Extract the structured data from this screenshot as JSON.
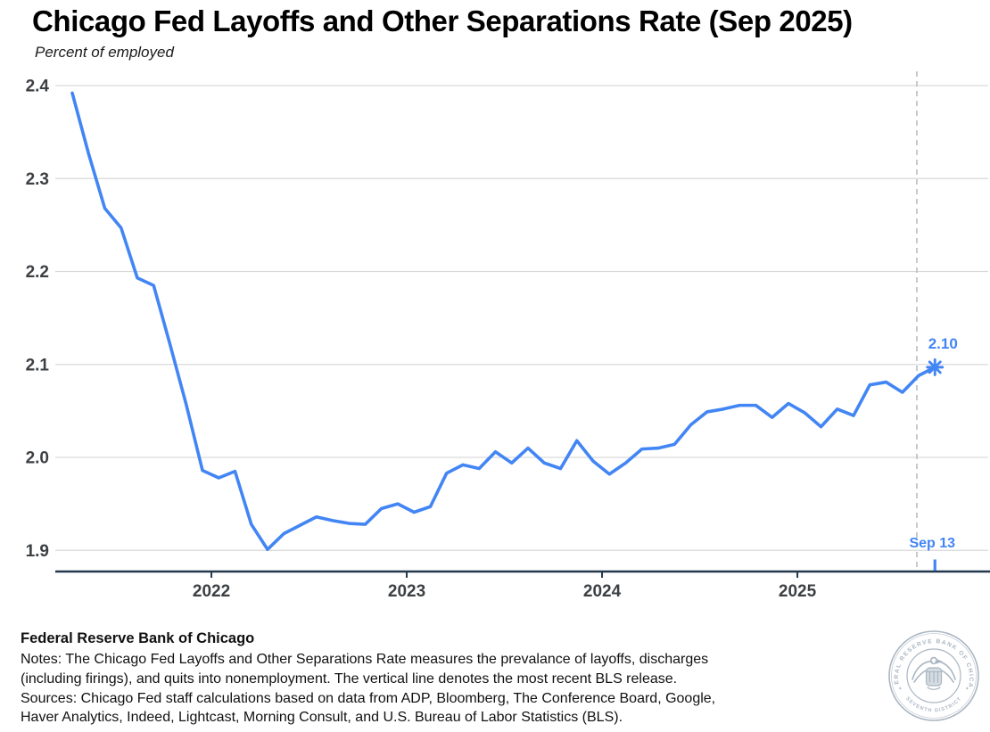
{
  "header": {
    "title": "Chicago Fed Layoffs and Other Separations Rate (Sep 2025)",
    "subtitle": "Percent of employed"
  },
  "chart_data": {
    "type": "line",
    "title": "Chicago Fed Layoffs and Other Separations Rate (Sep 2025)",
    "ylabel": "Percent of employed",
    "xlabel": "",
    "grid": true,
    "legend_position": "none",
    "ylim": [
      1.875,
      2.42
    ],
    "y_ticks": [
      "2.4",
      "2.3",
      "2.2",
      "2.1",
      "2.0",
      "1.9"
    ],
    "x_ticks": [
      "2022",
      "2023",
      "2024",
      "2025"
    ],
    "bls_release_date": "2025-08",
    "last_value_label": "2.10",
    "last_date_label": "Sep 13",
    "points": [
      {
        "date": "2021-04",
        "value": 2.392
      },
      {
        "date": "2021-05",
        "value": 2.327
      },
      {
        "date": "2021-06",
        "value": 2.268
      },
      {
        "date": "2021-07",
        "value": 2.247
      },
      {
        "date": "2021-08",
        "value": 2.193
      },
      {
        "date": "2021-09",
        "value": 2.185
      },
      {
        "date": "2021-10",
        "value": 2.122
      },
      {
        "date": "2021-11",
        "value": 2.057
      },
      {
        "date": "2021-12",
        "value": 1.986
      },
      {
        "date": "2022-01",
        "value": 1.978
      },
      {
        "date": "2022-02",
        "value": 1.985
      },
      {
        "date": "2022-03",
        "value": 1.928
      },
      {
        "date": "2022-04",
        "value": 1.901
      },
      {
        "date": "2022-05",
        "value": 1.918
      },
      {
        "date": "2022-06",
        "value": 1.927
      },
      {
        "date": "2022-07",
        "value": 1.936
      },
      {
        "date": "2022-08",
        "value": 1.932
      },
      {
        "date": "2022-09",
        "value": 1.929
      },
      {
        "date": "2022-10",
        "value": 1.928
      },
      {
        "date": "2022-11",
        "value": 1.945
      },
      {
        "date": "2022-12",
        "value": 1.95
      },
      {
        "date": "2023-01",
        "value": 1.941
      },
      {
        "date": "2023-02",
        "value": 1.947
      },
      {
        "date": "2023-03",
        "value": 1.983
      },
      {
        "date": "2023-04",
        "value": 1.992
      },
      {
        "date": "2023-05",
        "value": 1.988
      },
      {
        "date": "2023-06",
        "value": 2.006
      },
      {
        "date": "2023-07",
        "value": 1.994
      },
      {
        "date": "2023-08",
        "value": 2.01
      },
      {
        "date": "2023-09",
        "value": 1.994
      },
      {
        "date": "2023-10",
        "value": 1.988
      },
      {
        "date": "2023-11",
        "value": 2.018
      },
      {
        "date": "2023-12",
        "value": 1.996
      },
      {
        "date": "2024-01",
        "value": 1.982
      },
      {
        "date": "2024-02",
        "value": 1.994
      },
      {
        "date": "2024-03",
        "value": 2.009
      },
      {
        "date": "2024-04",
        "value": 2.01
      },
      {
        "date": "2024-05",
        "value": 2.014
      },
      {
        "date": "2024-06",
        "value": 2.035
      },
      {
        "date": "2024-07",
        "value": 2.049
      },
      {
        "date": "2024-08",
        "value": 2.052
      },
      {
        "date": "2024-09",
        "value": 2.056
      },
      {
        "date": "2024-10",
        "value": 2.056
      },
      {
        "date": "2024-11",
        "value": 2.043
      },
      {
        "date": "2024-12",
        "value": 2.058
      },
      {
        "date": "2025-01",
        "value": 2.048
      },
      {
        "date": "2025-02",
        "value": 2.033
      },
      {
        "date": "2025-03",
        "value": 2.052
      },
      {
        "date": "2025-04",
        "value": 2.045
      },
      {
        "date": "2025-05",
        "value": 2.078
      },
      {
        "date": "2025-06",
        "value": 2.081
      },
      {
        "date": "2025-07",
        "value": 2.07
      },
      {
        "date": "2025-08",
        "value": 2.088
      },
      {
        "date": "2025-09-13",
        "value": 2.097
      }
    ]
  },
  "colors": {
    "line": "#4285f4",
    "grid": "#d9d9d9",
    "axis": "#22384d",
    "tick_label": "#3d4043",
    "dashed": "#b7bdc3",
    "annotation": "#4285f4",
    "seal": "#aab6c2"
  },
  "footer": {
    "org": "Federal Reserve Bank of Chicago",
    "lines": [
      "Notes: The Chicago Fed Layoffs and Other Separations Rate measures the prevalance of layoffs, discharges",
      "(including firings), and quits into nonemployment. The vertical line denotes the most recent BLS release.",
      "Sources: Chicago Fed staff calculations based on data from ADP, Bloomberg, The Conference Board, Google,",
      "Haver Analytics, Indeed, Lightcast, Morning Consult, and U.S. Bureau of Labor Statistics (BLS)."
    ],
    "seal_text_top": "FEDERAL RESERVE BANK OF CHICAGO",
    "seal_text_bottom": "SEVENTH DISTRICT"
  }
}
